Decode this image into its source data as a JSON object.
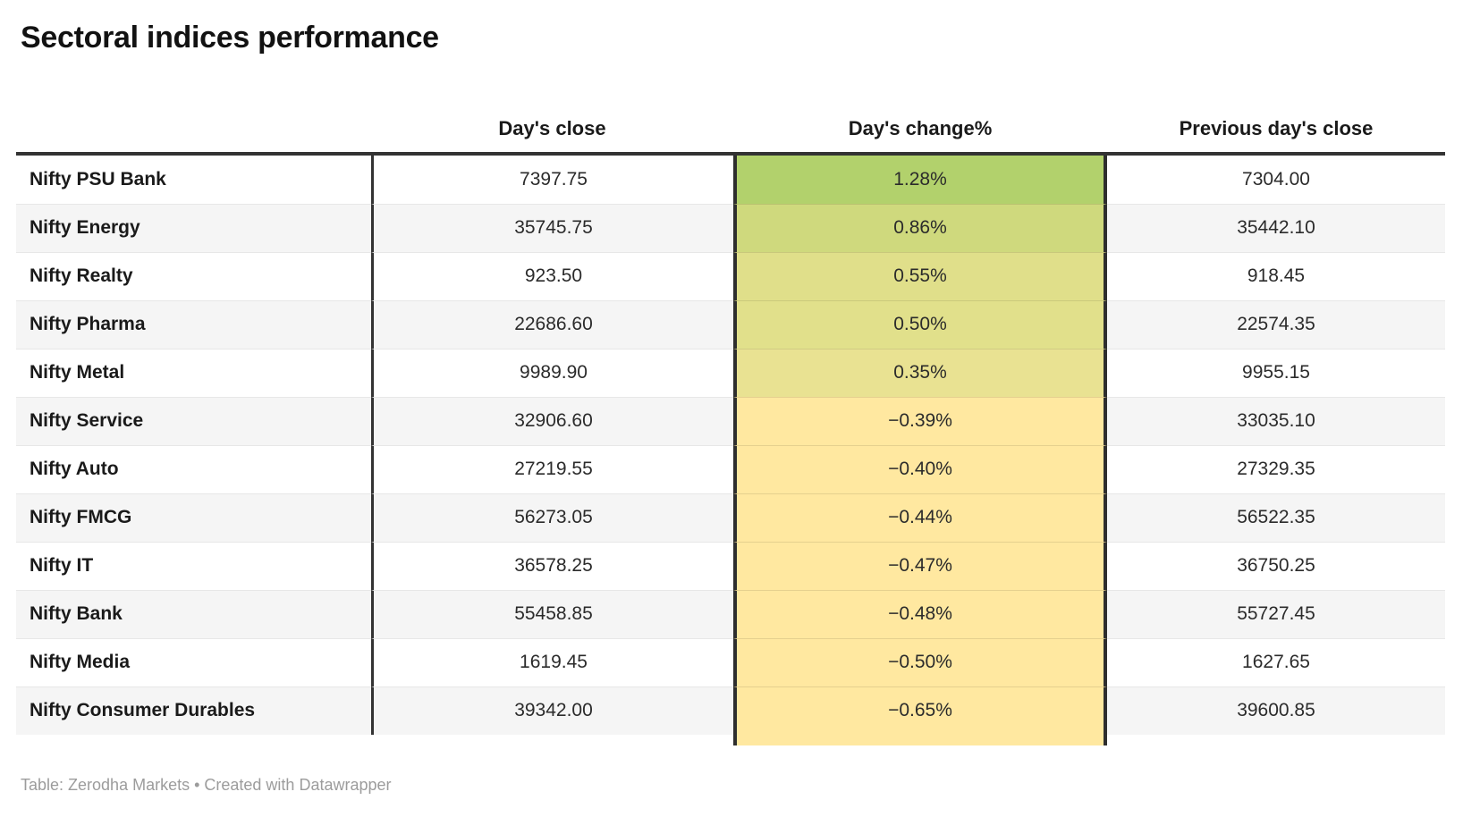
{
  "title": "Sectoral indices performance",
  "footer": "Table: Zerodha Markets • Created with Datawrapper",
  "colors": {
    "top_rule": "#333333",
    "column_divider": "#2e2e2e",
    "alt_row_bg": "#f5f5f5",
    "footnote_text": "#9c9c9c",
    "positive_strong_green": "#b2d16c",
    "negative_pale_yellow": "#ffe8a0"
  },
  "chart_data": {
    "type": "table",
    "title": "Sectoral indices performance",
    "columns": [
      "",
      "Day's close",
      "Day's change%",
      "Previous day's close"
    ],
    "heatmap_column": "Day's change%",
    "rows": [
      {
        "name": "Nifty PSU Bank",
        "close": "7397.75",
        "change": "1.28%",
        "prev": "7304.00",
        "change_value": 1.28,
        "change_bg": "#b2d16c"
      },
      {
        "name": "Nifty Energy",
        "close": "35745.75",
        "change": "0.86%",
        "prev": "35442.10",
        "change_value": 0.86,
        "change_bg": "#cfd97d"
      },
      {
        "name": "Nifty Realty",
        "close": "923.50",
        "change": "0.55%",
        "prev": "918.45",
        "change_value": 0.55,
        "change_bg": "#e0df8a"
      },
      {
        "name": "Nifty Pharma",
        "close": "22686.60",
        "change": "0.50%",
        "prev": "22574.35",
        "change_value": 0.5,
        "change_bg": "#e1e08b"
      },
      {
        "name": "Nifty Metal",
        "close": "9989.90",
        "change": "0.35%",
        "prev": "9955.15",
        "change_value": 0.35,
        "change_bg": "#e9e292"
      },
      {
        "name": "Nifty Service",
        "close": "32906.60",
        "change": "−0.39%",
        "prev": "33035.10",
        "change_value": -0.39,
        "change_bg": "#ffe8a0"
      },
      {
        "name": "Nifty Auto",
        "close": "27219.55",
        "change": "−0.40%",
        "prev": "27329.35",
        "change_value": -0.4,
        "change_bg": "#ffe8a0"
      },
      {
        "name": "Nifty FMCG",
        "close": "56273.05",
        "change": "−0.44%",
        "prev": "56522.35",
        "change_value": -0.44,
        "change_bg": "#ffe8a0"
      },
      {
        "name": "Nifty IT",
        "close": "36578.25",
        "change": "−0.47%",
        "prev": "36750.25",
        "change_value": -0.47,
        "change_bg": "#ffe8a0"
      },
      {
        "name": "Nifty Bank",
        "close": "55458.85",
        "change": "−0.48%",
        "prev": "55727.45",
        "change_value": -0.48,
        "change_bg": "#ffe8a0"
      },
      {
        "name": "Nifty Media",
        "close": "1619.45",
        "change": "−0.50%",
        "prev": "1627.65",
        "change_value": -0.5,
        "change_bg": "#ffe8a0"
      },
      {
        "name": "Nifty Consumer Durables",
        "close": "39342.00",
        "change": "−0.65%",
        "prev": "39600.85",
        "change_value": -0.65,
        "change_bg": "#ffe8a0"
      }
    ]
  }
}
